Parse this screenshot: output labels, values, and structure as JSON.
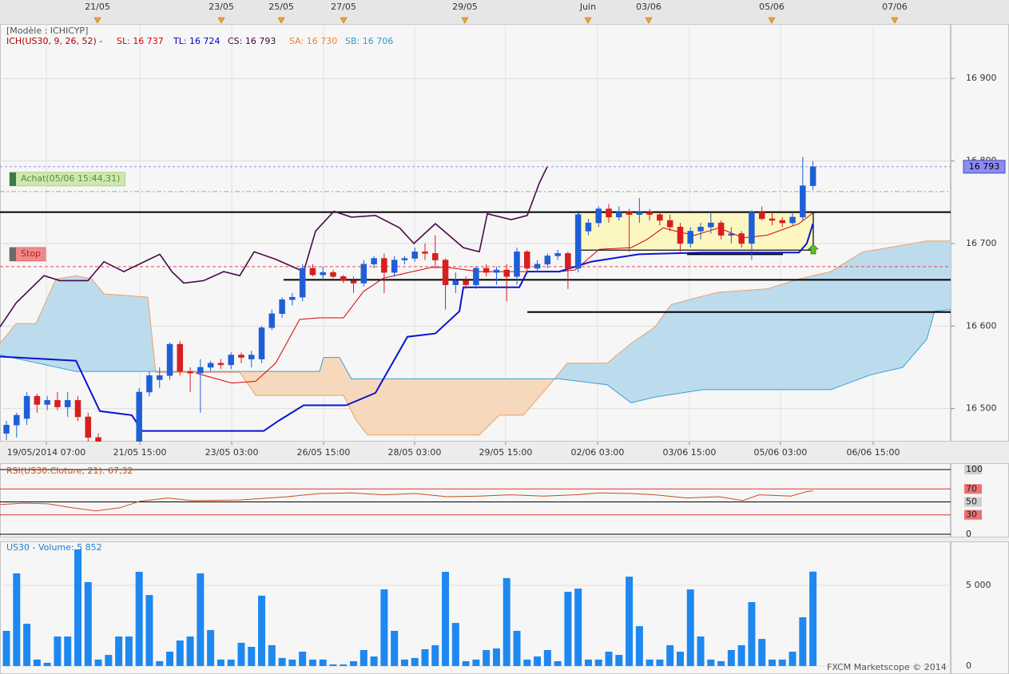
{
  "chart_data": [
    {
      "type": "candlestick",
      "title": "[Modèle : ICHICYP]",
      "subtitle": "ICH(US30, 9, 26, 52) -",
      "legend": [
        {
          "text": "SL: 16 737",
          "color": "#e00000"
        },
        {
          "text": "TL: 16 724",
          "color": "#0000c0"
        },
        {
          "text": "CS: 16 793",
          "color": "#3a083a"
        },
        {
          "text": "SA: 16 730",
          "color": "#f08030"
        },
        {
          "text": "SB: 16 706",
          "color": "#2f9ad0"
        }
      ],
      "categories": [
        null,
        null,
        null,
        null,
        null,
        null,
        null,
        null,
        null,
        null,
        null,
        null,
        null,
        null,
        null,
        null,
        null,
        null,
        null,
        null,
        null,
        null,
        null,
        null,
        null,
        null,
        null,
        null,
        null,
        null,
        null,
        null,
        null,
        null,
        null,
        null,
        null,
        null,
        null,
        null,
        null,
        null,
        null,
        null,
        null,
        null,
        null,
        null,
        null,
        null,
        null,
        null,
        null,
        null,
        null,
        null,
        null,
        null,
        null,
        null,
        null,
        null,
        null,
        null,
        null,
        null,
        null,
        null,
        null,
        null,
        null,
        null,
        null,
        null,
        null,
        null,
        null,
        null,
        null,
        null
      ],
      "open": [
        16470,
        16480,
        16488,
        16515,
        16505,
        16510,
        16502,
        16510,
        16490,
        16465,
        16445,
        16440,
        16445,
        16450,
        16520,
        16535,
        16540,
        16578,
        16545,
        16543,
        16550,
        16555,
        16553,
        16565,
        16560,
        16560,
        16598,
        16615,
        16632,
        16635,
        16670,
        16662,
        16665,
        16660,
        16655,
        16652,
        16675,
        16682,
        16665,
        16680,
        16682,
        16690,
        16688,
        16680,
        16650,
        16655,
        16650,
        16670,
        16665,
        16668,
        16660,
        16690,
        16670,
        16675,
        16685,
        16688,
        16670,
        16715,
        16725,
        16742,
        16732,
        16738,
        16735,
        16738,
        16735,
        16728,
        16720,
        16700,
        16715,
        16720,
        16725,
        16710,
        16712,
        16700,
        16738,
        16730,
        16728,
        16725,
        16732,
        16770
      ],
      "high": [
        16485,
        16495,
        16520,
        16518,
        16515,
        16520,
        16520,
        16515,
        16495,
        16470,
        16450,
        16450,
        16460,
        16525,
        16545,
        16550,
        16580,
        16582,
        16550,
        16560,
        16558,
        16560,
        16568,
        16568,
        16570,
        16600,
        16620,
        16635,
        16640,
        16675,
        16675,
        16672,
        16668,
        16662,
        16660,
        16680,
        16685,
        16688,
        16685,
        16685,
        16695,
        16700,
        16710,
        16682,
        16665,
        16660,
        16672,
        16675,
        16672,
        16675,
        16695,
        16692,
        16680,
        16688,
        16692,
        16690,
        16740,
        16730,
        16745,
        16748,
        16745,
        16742,
        16755,
        16742,
        16738,
        16735,
        16725,
        16720,
        16725,
        16738,
        16728,
        16720,
        16715,
        16740,
        16745,
        16738,
        16732,
        16738,
        16805,
        16800
      ],
      "low": [
        16462,
        16465,
        16480,
        16495,
        16498,
        16498,
        16490,
        16485,
        16460,
        16440,
        16430,
        16430,
        16440,
        16445,
        16515,
        16525,
        16535,
        16540,
        16520,
        16495,
        16545,
        16548,
        16548,
        16555,
        16550,
        16555,
        16595,
        16610,
        16625,
        16630,
        16660,
        16655,
        16658,
        16652,
        16640,
        16648,
        16670,
        16640,
        16660,
        16675,
        16678,
        16680,
        16670,
        16620,
        16640,
        16645,
        16645,
        16660,
        16650,
        16630,
        16650,
        16665,
        16665,
        16670,
        16680,
        16645,
        16665,
        16710,
        16720,
        16725,
        16728,
        16690,
        16725,
        16728,
        16722,
        16715,
        16690,
        16695,
        16705,
        16712,
        16705,
        16700,
        16695,
        16680,
        16728,
        16722,
        16720,
        16722,
        16728,
        16765
      ],
      "close": [
        16480,
        16492,
        16515,
        16505,
        16510,
        16502,
        16510,
        16490,
        16465,
        16445,
        16440,
        16445,
        16450,
        16520,
        16540,
        16540,
        16578,
        16545,
        16543,
        16550,
        16555,
        16553,
        16565,
        16562,
        16565,
        16598,
        16615,
        16632,
        16635,
        16670,
        16662,
        16665,
        16660,
        16655,
        16652,
        16675,
        16682,
        16665,
        16680,
        16682,
        16690,
        16688,
        16680,
        16650,
        16655,
        16650,
        16670,
        16665,
        16668,
        16660,
        16690,
        16670,
        16675,
        16685,
        16688,
        16670,
        16735,
        16725,
        16742,
        16732,
        16738,
        16735,
        16738,
        16735,
        16728,
        16720,
        16700,
        16715,
        16720,
        16725,
        16710,
        16712,
        16700,
        16738,
        16730,
        16728,
        16725,
        16732,
        16770,
        16793
      ],
      "up_color": "#1f5fd6",
      "down_color": "#d81e1e",
      "xlim": [
        -0.63,
        92.49
      ],
      "xticks": [
        {
          "value": 3.91,
          "label": "19/05/2014 07:00"
        },
        {
          "value": 13.07,
          "label": "21/05 15:00"
        },
        {
          "value": 22.07,
          "label": "23/05 03:00"
        },
        {
          "value": 31.06,
          "label": "26/05 15:00"
        },
        {
          "value": 39.98,
          "label": "28/05 03:00"
        },
        {
          "value": 48.9,
          "label": "29/05 15:00"
        },
        {
          "value": 57.9,
          "label": "02/06 03:00"
        },
        {
          "value": 66.9,
          "label": "03/06 15:00"
        },
        {
          "value": 75.82,
          "label": "05/06 03:00"
        },
        {
          "value": 84.9,
          "label": "06/06 15:00"
        }
      ],
      "top_ticks": [
        {
          "value": 8.92,
          "label": "21/05"
        },
        {
          "value": 21.05,
          "label": "23/05"
        },
        {
          "value": 26.92,
          "label": "25/05"
        },
        {
          "value": 33.02,
          "label": "27/05"
        },
        {
          "value": 44.91,
          "label": "29/05"
        },
        {
          "value": 56.96,
          "label": "Juin"
        },
        {
          "value": 62.91,
          "label": "03/06"
        },
        {
          "value": 74.96,
          "label": "05/06"
        },
        {
          "value": 87.01,
          "label": "07/06"
        }
      ],
      "ylim": [
        16460,
        16966
      ],
      "yticks": [
        {
          "value": 16500,
          "label": "16 500"
        },
        {
          "value": 16600,
          "label": "16 600"
        },
        {
          "value": 16700,
          "label": "16 700"
        },
        {
          "value": 16800,
          "label": "16 800"
        },
        {
          "value": 16900,
          "label": "16 900"
        }
      ],
      "grid": true,
      "lines": [
        {
          "color": "#d80000",
          "width": 1,
          "x": [
            18.54,
            22.07,
            24.41,
            26.37,
            28.72,
            30.67,
            33.02,
            34.98,
            36.93,
            41.63,
            43.19,
            46.32,
            51.02,
            54.15,
            55.71,
            58.06,
            61.19,
            62.75,
            64.32,
            65.88,
            67.45,
            69.8,
            72.14,
            74.49,
            77.62,
            79
          ],
          "values": [
            16543,
            16531,
            16533,
            16555,
            16608,
            16610,
            16610,
            16642,
            16658,
            16671,
            16671,
            16666,
            16666,
            16666,
            16668,
            16693,
            16695,
            16705,
            16719,
            16714,
            16710,
            16719,
            16707,
            16710,
            16724,
            16737
          ]
        },
        {
          "color": "#0a14d0",
          "width": 2,
          "x": [
            -0.63,
            6.81,
            9.15,
            12.28,
            13.3,
            25.2,
            26.76,
            29.11,
            33.26,
            36.15,
            39.28,
            42.02,
            44.37,
            44.76,
            50.23,
            51.02,
            54.15,
            57.28,
            61.97,
            68.23,
            77.62,
            78.4,
            79
          ],
          "values": [
            16563,
            16558,
            16497,
            16492,
            16473,
            16473,
            16486,
            16504,
            16504,
            16519,
            16587,
            16591,
            16618,
            16647,
            16647,
            16666,
            16666,
            16678,
            16687,
            16689,
            16689,
            16700,
            16724
          ]
        },
        {
          "color": "#4a0a4a",
          "width": 1.6,
          "x": [
            -0.63,
            0.94,
            3.68,
            5.24,
            7.98,
            9.55,
            11.5,
            15.02,
            16.2,
            17.37,
            19.33,
            21.28,
            22.85,
            24.26,
            26.37,
            29.11,
            30.28,
            32.08,
            33.8,
            36.15,
            38.5,
            39.91,
            42.02,
            44.76,
            46.32,
            47.1,
            49.45,
            51.02,
            52.19,
            52.97
          ],
          "values": [
            16599,
            16628,
            16661,
            16655,
            16655,
            16678,
            16666,
            16687,
            16666,
            16652,
            16655,
            16666,
            16661,
            16690,
            16681,
            16666,
            16715,
            16739,
            16732,
            16734,
            16719,
            16700,
            16724,
            16695,
            16690,
            16736,
            16729,
            16734,
            16773,
            16793
          ]
        }
      ],
      "cloud": {
        "a": {
          "color": "#f0a060",
          "x": [
            -0.63,
            0.94,
            2.9,
            4.85,
            6.81,
            8.37,
            9.55,
            13.85,
            14.63,
            22.85,
            24.41,
            33.02,
            34.2,
            35.37,
            46.32,
            48.28,
            50.63,
            53.36,
            54.93,
            58.84,
            61.19,
            63.54,
            65.1,
            67.45,
            69.8,
            74.49,
            77.62,
            80.75,
            83.88,
            85.45,
            90.14,
            92.49
          ],
          "values": [
            16579,
            16603,
            16603,
            16657,
            16661,
            16657,
            16639,
            16635,
            16544,
            16544,
            16516,
            16516,
            16487,
            16468,
            16468,
            16492,
            16492,
            16531,
            16555,
            16555,
            16579,
            16599,
            16626,
            16634,
            16641,
            16645,
            16657,
            16666,
            16690,
            16693,
            16703,
            16703
          ]
        },
        "b": {
          "color": "#3aa0d8",
          "x": [
            -0.63,
            6.81,
            30.67,
            31.06,
            32.63,
            33.8,
            54.15,
            58.84,
            61.19,
            63.54,
            68.23,
            80.75,
            84.66,
            87.79,
            90.14,
            90.92,
            92.49
          ],
          "values": [
            16565,
            16545,
            16545,
            16562,
            16562,
            16536,
            16536,
            16529,
            16507,
            16514,
            16523,
            16523,
            16541,
            16550,
            16584,
            16618,
            16620
          ]
        },
        "up_color": "#bcdcee",
        "down_color": "#f6d8bc"
      },
      "levels": [
        {
          "value": 16738,
          "x": [
            -0.63,
            92.49
          ]
        },
        {
          "value": 16656,
          "x": [
            27.15,
            92.49
          ]
        },
        {
          "value": 16617,
          "x": [
            51.02,
            92.49
          ]
        },
        {
          "value": 16687,
          "x": [
            66.67,
            76.06
          ]
        }
      ],
      "box": {
        "x": [
          56.03,
          79.03
        ],
        "values": [
          16692,
          16738
        ],
        "color": "#fcf6c2"
      },
      "price_tag": {
        "value": 16793,
        "label": "16 793",
        "color": "#8c8cf2"
      },
      "orders": [
        {
          "label": "Achat(05/06 15:44,31)",
          "value": 16763,
          "color": "#8cc04a",
          "box_color": "#cfe8b0"
        },
        {
          "label": "Stop",
          "value": 16672,
          "color": "#e04848",
          "box_color": "#f08a8a"
        }
      ]
    },
    {
      "type": "line",
      "title": "RSI(US30.Cloture, 21): 67,32",
      "color": "#c8501e",
      "xlim": [
        -0.63,
        92.49
      ],
      "x": [
        -0.63,
        1.72,
        4.07,
        6.42,
        8.76,
        11.11,
        13.07,
        15.81,
        18.15,
        22.85,
        27.54,
        30.67,
        33.8,
        36.93,
        40.06,
        43.19,
        46.32,
        49.45,
        52.58,
        55.71,
        58.06,
        61.19,
        63.54,
        66.67,
        69.8,
        72.14,
        73.71,
        76.84,
        78.4,
        79
      ],
      "values": [
        46,
        48,
        47,
        41,
        36,
        41,
        51,
        56,
        52,
        53,
        58,
        63,
        64,
        61,
        63,
        58,
        59,
        61,
        59,
        61,
        64,
        63,
        61,
        56,
        58,
        52,
        61,
        59,
        66,
        67.32
      ],
      "ylim": [
        0,
        100
      ],
      "yticks": [
        0,
        30,
        50,
        70,
        100
      ],
      "grid_colors": [
        "#000000",
        "#e03030",
        "#000000",
        "#e03030",
        "#000000"
      ],
      "label_colors": [
        null,
        "#f07070",
        "#cfcfcf",
        "#f07070",
        "#cfcfcf"
      ]
    },
    {
      "type": "bar",
      "title": "US30 - Volume: 5 852",
      "color": "#1e88f0",
      "xlim": [
        -0.63,
        92.49
      ],
      "categories": [
        null,
        null,
        null,
        null,
        null,
        null,
        null,
        null,
        null,
        null,
        null,
        null,
        null,
        null,
        null,
        null,
        null,
        null,
        null,
        null,
        null,
        null,
        null,
        null,
        null,
        null,
        null,
        null,
        null,
        null,
        null,
        null,
        null,
        null,
        null,
        null,
        null,
        null,
        null,
        null,
        null,
        null,
        null,
        null,
        null,
        null,
        null,
        null,
        null,
        null,
        null,
        null,
        null,
        null,
        null,
        null,
        null,
        null,
        null,
        null,
        null,
        null,
        null,
        null,
        null,
        null,
        null,
        null,
        null,
        null,
        null,
        null,
        null,
        null,
        null,
        null,
        null,
        null,
        null,
        null
      ],
      "values": [
        2180,
        5740,
        2620,
        400,
        200,
        1830,
        1830,
        7230,
        5200,
        400,
        690,
        1830,
        1830,
        5840,
        4400,
        300,
        890,
        1580,
        1830,
        5740,
        2230,
        400,
        400,
        1440,
        1190,
        4360,
        1290,
        500,
        400,
        890,
        400,
        400,
        100,
        100,
        300,
        990,
        590,
        4750,
        2180,
        400,
        500,
        1040,
        1290,
        5840,
        2670,
        300,
        400,
        990,
        1090,
        5450,
        2180,
        400,
        590,
        990,
        300,
        4600,
        4800,
        400,
        400,
        890,
        690,
        5540,
        2470,
        400,
        400,
        1290,
        890,
        4750,
        1830,
        400,
        300,
        990,
        1290,
        3960,
        1680,
        400,
        400,
        890,
        3020,
        5852
      ],
      "ylim": [
        0,
        7624
      ],
      "yticks": [
        0,
        {
          "value": 5000,
          "label": "5 000"
        }
      ]
    }
  ],
  "footer": "FXCM Marketscope © 2014"
}
